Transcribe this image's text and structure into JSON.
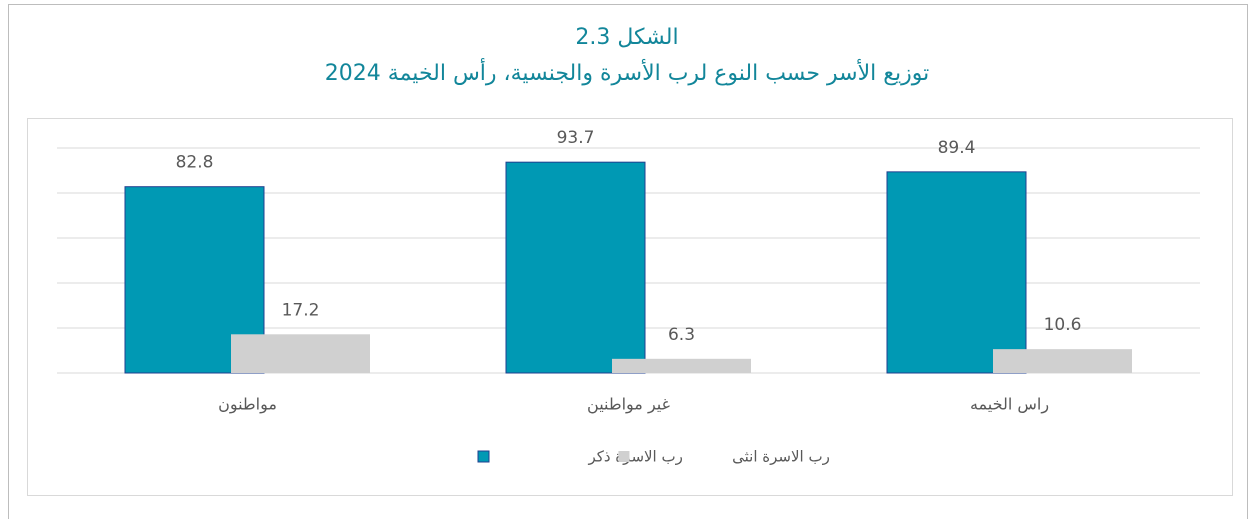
{
  "chart_data": {
    "type": "bar",
    "title": "الشكل 2.3",
    "subtitle": "توزيع الأسر حسب النوع لرب الأسرة والجنسية، رأس الخيمة 2024",
    "categories": [
      "مواطنون",
      "غير مواطنين",
      "راس الخيمه"
    ],
    "series": [
      {
        "name": "رب الاسرة ذكر",
        "color": "#0099b4",
        "values": [
          82.8,
          93.7,
          89.4
        ]
      },
      {
        "name": "رب الاسرة انثى",
        "color": "#d0d0d0",
        "values": [
          17.2,
          6.3,
          10.6
        ]
      }
    ],
    "ylim": [
      0,
      100
    ],
    "yticks": [
      0,
      20,
      40,
      60,
      80,
      100
    ],
    "grid": true,
    "legend": "bottom"
  }
}
